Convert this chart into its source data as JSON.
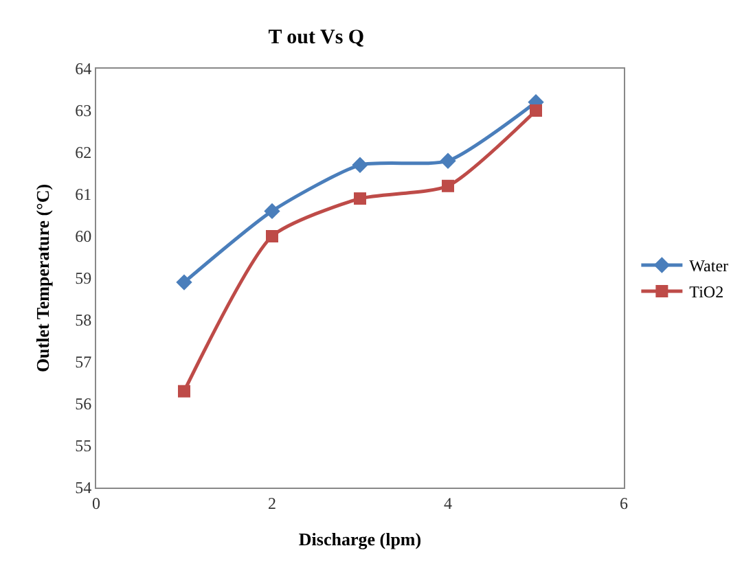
{
  "chart_data": {
    "type": "line",
    "title": "T out Vs Q",
    "xlabel": "Discharge (lpm)",
    "ylabel": "Outlet Temperature (°C)",
    "x": [
      1,
      2,
      3,
      4,
      5
    ],
    "series": [
      {
        "name": "Water",
        "color": "#4a7ebb",
        "marker": "diamond",
        "values": [
          58.9,
          60.6,
          61.7,
          61.8,
          63.2
        ]
      },
      {
        "name": "TiO2",
        "color": "#be4b48",
        "marker": "square",
        "values": [
          56.3,
          60.0,
          60.9,
          61.2,
          63.0
        ]
      }
    ],
    "xlim": [
      0,
      6
    ],
    "xticks": [
      0,
      2,
      4,
      6
    ],
    "ylim": [
      54,
      64
    ],
    "yticks": [
      54,
      55,
      56,
      57,
      58,
      59,
      60,
      61,
      62,
      63,
      64
    ],
    "legend": "right",
    "line_style": "solid"
  }
}
